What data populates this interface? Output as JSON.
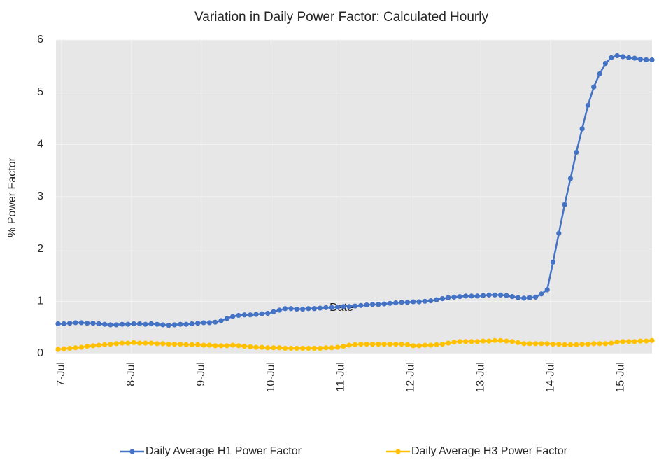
{
  "chart_data": {
    "type": "line",
    "title": "Variation in Daily Power Factor: Calculated Hourly",
    "x_label": "Date",
    "y_label": "% Power Factor",
    "categories": [
      "7-Jul",
      null,
      null,
      null,
      null,
      null,
      null,
      null,
      null,
      null,
      null,
      null,
      "8-Jul",
      null,
      null,
      null,
      null,
      null,
      null,
      null,
      null,
      null,
      null,
      null,
      "9-Jul",
      null,
      null,
      null,
      null,
      null,
      null,
      null,
      null,
      null,
      null,
      null,
      "10-Jul",
      null,
      null,
      null,
      null,
      null,
      null,
      null,
      null,
      null,
      null,
      null,
      "11-Jul",
      null,
      null,
      null,
      null,
      null,
      null,
      null,
      null,
      null,
      null,
      null,
      "12-Jul",
      null,
      null,
      null,
      null,
      null,
      null,
      null,
      null,
      null,
      null,
      null,
      "13-Jul",
      null,
      null,
      null,
      null,
      null,
      null,
      null,
      null,
      null,
      null,
      null,
      "14-Jul",
      null,
      null,
      null,
      null,
      null,
      null,
      null,
      null,
      null,
      null,
      null,
      "15-Jul",
      null,
      null,
      null,
      null,
      null,
      null
    ],
    "series": [
      {
        "name": "Daily Average H1 Power Factor",
        "color": "#4472c4",
        "values": [
          0.57,
          0.57,
          0.58,
          0.59,
          0.59,
          0.58,
          0.58,
          0.57,
          0.56,
          0.55,
          0.55,
          0.56,
          0.56,
          0.57,
          0.57,
          0.56,
          0.57,
          0.56,
          0.55,
          0.54,
          0.55,
          0.56,
          0.56,
          0.57,
          0.58,
          0.59,
          0.59,
          0.6,
          0.63,
          0.67,
          0.71,
          0.73,
          0.74,
          0.74,
          0.75,
          0.76,
          0.77,
          0.8,
          0.83,
          0.86,
          0.86,
          0.85,
          0.85,
          0.86,
          0.86,
          0.87,
          0.88,
          0.88,
          0.89,
          0.9,
          0.9,
          0.91,
          0.92,
          0.93,
          0.94,
          0.94,
          0.95,
          0.96,
          0.97,
          0.98,
          0.98,
          0.99,
          0.99,
          1.0,
          1.01,
          1.03,
          1.05,
          1.07,
          1.08,
          1.09,
          1.1,
          1.1,
          1.1,
          1.11,
          1.12,
          1.12,
          1.12,
          1.11,
          1.09,
          1.07,
          1.06,
          1.07,
          1.08,
          1.14,
          1.22,
          1.75,
          2.3,
          2.85,
          3.35,
          3.85,
          4.3,
          4.75,
          5.1,
          5.35,
          5.55,
          5.66,
          5.7,
          5.68,
          5.66,
          5.65,
          5.63,
          5.62,
          5.62
        ]
      },
      {
        "name": "Daily Average H3 Power Factor",
        "color": "#ffc000",
        "values": [
          0.08,
          0.09,
          0.1,
          0.11,
          0.12,
          0.14,
          0.15,
          0.16,
          0.17,
          0.18,
          0.19,
          0.2,
          0.2,
          0.21,
          0.2,
          0.2,
          0.2,
          0.19,
          0.19,
          0.18,
          0.18,
          0.18,
          0.17,
          0.17,
          0.17,
          0.16,
          0.16,
          0.15,
          0.15,
          0.15,
          0.16,
          0.15,
          0.14,
          0.13,
          0.12,
          0.12,
          0.11,
          0.11,
          0.11,
          0.1,
          0.1,
          0.1,
          0.1,
          0.1,
          0.1,
          0.1,
          0.11,
          0.11,
          0.12,
          0.14,
          0.16,
          0.17,
          0.18,
          0.18,
          0.18,
          0.18,
          0.18,
          0.18,
          0.18,
          0.18,
          0.17,
          0.15,
          0.15,
          0.16,
          0.16,
          0.17,
          0.18,
          0.2,
          0.22,
          0.23,
          0.23,
          0.23,
          0.23,
          0.24,
          0.24,
          0.25,
          0.25,
          0.24,
          0.23,
          0.21,
          0.19,
          0.19,
          0.19,
          0.19,
          0.19,
          0.18,
          0.18,
          0.17,
          0.17,
          0.17,
          0.18,
          0.18,
          0.19,
          0.19,
          0.19,
          0.2,
          0.22,
          0.23,
          0.23,
          0.23,
          0.24,
          0.24,
          0.25
        ]
      }
    ],
    "ylim": [
      0,
      6
    ],
    "yticks": [
      0,
      1,
      2,
      3,
      4,
      5,
      6
    ],
    "grid": true,
    "legend": "bottom"
  }
}
